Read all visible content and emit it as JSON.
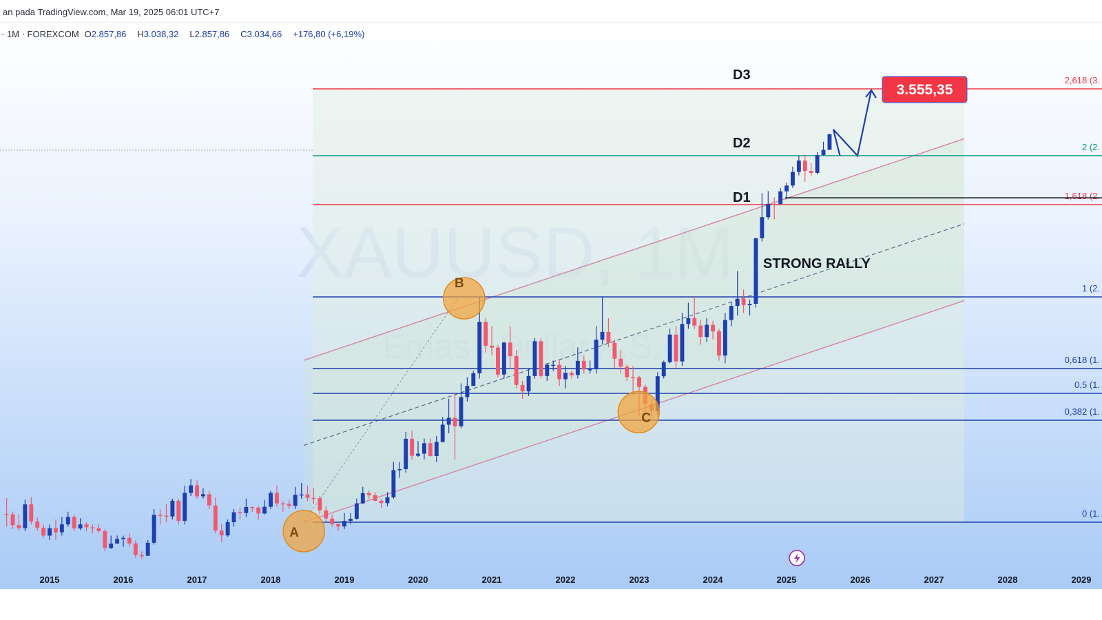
{
  "header": {
    "title": "an pada TradingView.com, Mar 19, 2025 06:01 UTC+7",
    "symbol": "· 1M · FOREXCOM",
    "open_label": "O",
    "open": "2.857,86",
    "high_label": "H",
    "high": "3.038,32",
    "low_label": "L",
    "low": "2.857,86",
    "close_label": "C",
    "close": "3.034,66",
    "change": "+176,80 (+6,19%)"
  },
  "watermark": {
    "symbol": "XAUUSD, 1M",
    "desc": "Emas / Dollar A.S."
  },
  "chart_data": {
    "type": "candlestick",
    "timeframe": "1M",
    "x_ticks": [
      "2015",
      "2016",
      "2017",
      "2018",
      "2019",
      "2020",
      "2021",
      "2022",
      "2023",
      "2024",
      "2025",
      "2026",
      "2027",
      "2028",
      "2029"
    ],
    "ylim": [
      1000,
      3700
    ],
    "fib_levels": [
      {
        "label": "2,618 (3.",
        "value": 3555,
        "color": "#f23645"
      },
      {
        "label": "2 (2.",
        "value": 2790,
        "color": "#089981"
      },
      {
        "label": "1,618 (2.",
        "value": 2320,
        "color": "#f23645"
      },
      {
        "label": "1 (2.",
        "value": 2070,
        "color": "#1e3fae"
      },
      {
        "label": "0,618 (1.",
        "value": 1800,
        "color": "#1e3fae"
      },
      {
        "label": "0,5 (1.",
        "value": 1700,
        "color": "#1e3fae"
      },
      {
        "label": "0,382 (1.",
        "value": 1600,
        "color": "#1e3fae"
      },
      {
        "label": "0 (1.",
        "value": 1210,
        "color": "#1e3fae"
      }
    ],
    "annotations": {
      "d1": "D1",
      "d2": "D2",
      "d3": "D3",
      "rally": "STRONG RALLY",
      "point_a": "A",
      "point_b": "B",
      "point_c": "C",
      "target": "3.555,35"
    },
    "candles": [
      [
        1241,
        1240,
        1302,
        1190
      ],
      [
        1240,
        1197,
        1250,
        1180
      ],
      [
        1197,
        1183,
        1240,
        1170
      ],
      [
        1183,
        1278,
        1296,
        1170
      ],
      [
        1278,
        1213,
        1306,
        1200
      ],
      [
        1213,
        1185,
        1228,
        1170
      ],
      [
        1185,
        1150,
        1200,
        1140
      ],
      [
        1150,
        1183,
        1200,
        1130
      ],
      [
        1183,
        1165,
        1220,
        1130
      ],
      [
        1165,
        1200,
        1230,
        1150
      ],
      [
        1200,
        1230,
        1250,
        1190
      ],
      [
        1230,
        1182,
        1240,
        1170
      ],
      [
        1182,
        1200,
        1225,
        1175
      ],
      [
        1200,
        1187,
        1210,
        1170
      ],
      [
        1187,
        1183,
        1200,
        1160
      ],
      [
        1183,
        1170,
        1200,
        1160
      ],
      [
        1170,
        1095,
        1180,
        1080
      ],
      [
        1095,
        1114,
        1150,
        1090
      ],
      [
        1114,
        1135,
        1150,
        1120
      ],
      [
        1135,
        1140,
        1150,
        1100
      ],
      [
        1140,
        1115,
        1160,
        1100
      ],
      [
        1115,
        1063,
        1130,
        1050
      ],
      [
        1063,
        1060,
        1080,
        1045
      ],
      [
        1060,
        1118,
        1130,
        1060
      ],
      [
        1118,
        1238,
        1260,
        1110
      ],
      [
        1238,
        1235,
        1260,
        1200
      ],
      [
        1235,
        1232,
        1280,
        1210
      ],
      [
        1232,
        1292,
        1300,
        1220
      ],
      [
        1292,
        1215,
        1300,
        1200
      ],
      [
        1215,
        1322,
        1350,
        1200
      ],
      [
        1322,
        1351,
        1375,
        1310
      ],
      [
        1351,
        1309,
        1370,
        1300
      ],
      [
        1309,
        1317,
        1340,
        1300
      ],
      [
        1317,
        1274,
        1330,
        1260
      ],
      [
        1274,
        1172,
        1305,
        1160
      ],
      [
        1172,
        1151,
        1200,
        1120
      ],
      [
        1151,
        1210,
        1220,
        1145
      ],
      [
        1210,
        1248,
        1260,
        1190
      ],
      [
        1248,
        1245,
        1265,
        1220
      ],
      [
        1245,
        1268,
        1300,
        1230
      ],
      [
        1268,
        1266,
        1270,
        1250
      ],
      [
        1266,
        1243,
        1270,
        1220
      ],
      [
        1243,
        1269,
        1295,
        1240
      ],
      [
        1269,
        1322,
        1330,
        1260
      ],
      [
        1322,
        1282,
        1350,
        1270
      ],
      [
        1282,
        1280,
        1290,
        1250
      ],
      [
        1280,
        1272,
        1295,
        1260
      ],
      [
        1272,
        1315,
        1345,
        1260
      ],
      [
        1315,
        1316,
        1360,
        1300
      ],
      [
        1316,
        1303,
        1350,
        1290
      ],
      [
        1303,
        1302,
        1340,
        1280
      ],
      [
        1302,
        1255,
        1310,
        1240
      ],
      [
        1255,
        1224,
        1270,
        1210
      ],
      [
        1224,
        1201,
        1240,
        1190
      ],
      [
        1201,
        1191,
        1210,
        1170
      ],
      [
        1191,
        1215,
        1245,
        1180
      ],
      [
        1215,
        1223,
        1245,
        1200
      ],
      [
        1223,
        1282,
        1300,
        1220
      ],
      [
        1282,
        1321,
        1345,
        1280
      ],
      [
        1321,
        1313,
        1330,
        1300
      ],
      [
        1313,
        1292,
        1325,
        1290
      ],
      [
        1292,
        1283,
        1300,
        1265
      ],
      [
        1283,
        1305,
        1325,
        1270
      ],
      [
        1305,
        1409,
        1440,
        1300
      ],
      [
        1409,
        1413,
        1440,
        1380
      ],
      [
        1413,
        1529,
        1555,
        1400
      ],
      [
        1529,
        1464,
        1560,
        1450
      ],
      [
        1464,
        1472,
        1520,
        1460
      ],
      [
        1472,
        1512,
        1530,
        1450
      ],
      [
        1512,
        1463,
        1530,
        1460
      ],
      [
        1463,
        1517,
        1540,
        1440
      ],
      [
        1517,
        1583,
        1612,
        1515
      ],
      [
        1583,
        1609,
        1680,
        1550
      ],
      [
        1609,
        1577,
        1700,
        1450
      ],
      [
        1577,
        1686,
        1740,
        1570
      ],
      [
        1686,
        1730,
        1765,
        1670
      ],
      [
        1730,
        1781,
        1790,
        1730
      ],
      [
        1781,
        1976,
        2070,
        1760
      ],
      [
        1976,
        1886,
        1990,
        1860
      ],
      [
        1886,
        1879,
        1960,
        1850
      ],
      [
        1879,
        1776,
        1890,
        1765
      ],
      [
        1776,
        1898,
        1900,
        1760
      ],
      [
        1898,
        1847,
        1960,
        1800
      ],
      [
        1847,
        1734,
        1870,
        1720
      ],
      [
        1734,
        1708,
        1750,
        1680
      ],
      [
        1708,
        1770,
        1800,
        1690
      ],
      [
        1770,
        1903,
        1915,
        1760
      ],
      [
        1903,
        1770,
        1915,
        1760
      ],
      [
        1770,
        1814,
        1820,
        1750
      ],
      [
        1814,
        1814,
        1830,
        1790
      ],
      [
        1814,
        1757,
        1835,
        1730
      ],
      [
        1757,
        1783,
        1810,
        1720
      ],
      [
        1783,
        1774,
        1790,
        1760
      ],
      [
        1774,
        1829,
        1880,
        1760
      ],
      [
        1829,
        1796,
        1850,
        1780
      ],
      [
        1796,
        1797,
        1830,
        1780
      ],
      [
        1797,
        1909,
        1960,
        1780
      ],
      [
        1909,
        1938,
        2070,
        1890
      ],
      [
        1938,
        1897,
        1990,
        1880
      ],
      [
        1897,
        1837,
        1910,
        1800
      ],
      [
        1837,
        1807,
        1870,
        1780
      ],
      [
        1807,
        1766,
        1815,
        1750
      ],
      [
        1766,
        1765,
        1810,
        1690
      ],
      [
        1765,
        1726,
        1770,
        1615
      ],
      [
        1726,
        1660,
        1735,
        1620
      ],
      [
        1660,
        1634,
        1680,
        1615
      ],
      [
        1634,
        1769,
        1785,
        1620
      ],
      [
        1769,
        1824,
        1830,
        1760
      ],
      [
        1824,
        1928,
        1950,
        1820
      ],
      [
        1928,
        1827,
        1960,
        1800
      ],
      [
        1827,
        1968,
        2010,
        1810
      ],
      [
        1968,
        1990,
        2048,
        1950
      ],
      [
        1990,
        1962,
        2070,
        1950
      ],
      [
        1962,
        1919,
        1985,
        1890
      ],
      [
        1919,
        1965,
        1990,
        1900
      ],
      [
        1965,
        1940,
        1980,
        1910
      ],
      [
        1940,
        1849,
        1950,
        1830
      ],
      [
        1849,
        1983,
        2010,
        1820
      ],
      [
        1983,
        2036,
        2050,
        1960
      ],
      [
        2036,
        2063,
        2140,
        2000
      ],
      [
        2063,
        2039,
        2090,
        2010
      ],
      [
        2039,
        2044,
        2060,
        2000
      ],
      [
        2044,
        2229,
        2230,
        2030
      ],
      [
        2229,
        2286,
        2430,
        2220
      ],
      [
        2286,
        2327,
        2450,
        2280
      ],
      [
        2327,
        2326,
        2390,
        2280
      ],
      [
        2326,
        2447,
        2480,
        2320
      ],
      [
        2447,
        2503,
        2530,
        2370
      ],
      [
        2503,
        2634,
        2685,
        2480
      ],
      [
        2634,
        2743,
        2790,
        2600
      ],
      [
        2743,
        2643,
        2800,
        2540
      ],
      [
        2643,
        2625,
        2720,
        2590
      ],
      [
        2625,
        2798,
        2830,
        2610
      ],
      [
        2798,
        2857,
        2950,
        2790
      ],
      [
        2857,
        3035,
        3040,
        2857
      ]
    ]
  }
}
